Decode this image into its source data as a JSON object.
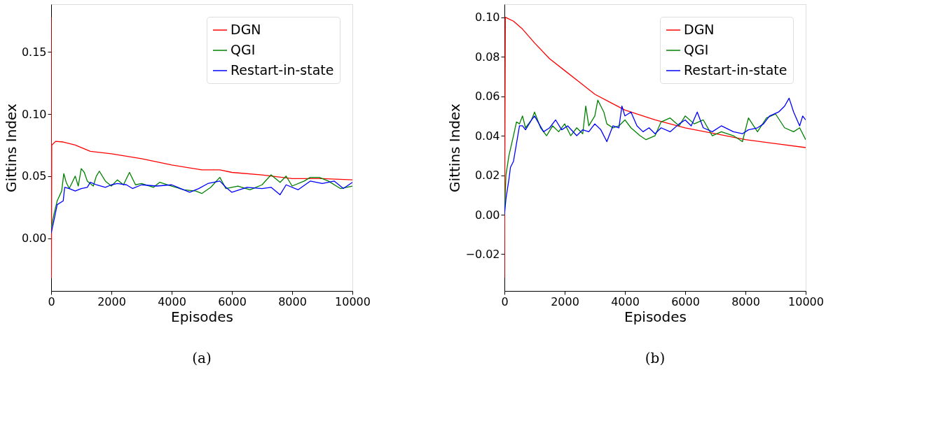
{
  "chart_data": [
    {
      "type": "line",
      "xlabel": "Episodes",
      "ylabel": "Gittins Index",
      "annotations": [
        "(a)"
      ],
      "xlim": [
        0,
        10000
      ],
      "ylim": [
        -0.0425,
        0.1885
      ],
      "xticks": [
        0,
        2000,
        4000,
        6000,
        8000,
        10000
      ],
      "yticks": [
        {
          "value": 0,
          "label": "0.00"
        },
        0.05,
        {
          "value": 0.1,
          "label": "0.10"
        },
        0.15
      ],
      "legend": "top right",
      "grid": false,
      "line_style": "solid",
      "series": [
        {
          "name": "DGN",
          "color": "#ff0000",
          "x": [
            0,
            10,
            20,
            150,
            400,
            800,
            1300,
            2000,
            3000,
            4000,
            5000,
            5600,
            6000,
            7000,
            8000,
            9000,
            10000
          ],
          "values": [
            0.178,
            -0.032,
            0.075,
            0.078,
            0.0775,
            0.075,
            0.07,
            0.068,
            0.064,
            0.059,
            0.055,
            0.055,
            0.053,
            0.051,
            0.048,
            0.048,
            0.047
          ]
        },
        {
          "name": "QGI",
          "color": "#008000",
          "x": [
            0,
            100,
            200,
            350,
            420,
            500,
            600,
            700,
            800,
            900,
            1000,
            1100,
            1200,
            1400,
            1500,
            1600,
            1800,
            2000,
            2200,
            2400,
            2600,
            2800,
            3000,
            3400,
            3600,
            4000,
            4400,
            4800,
            5000,
            5300,
            5600,
            5800,
            6200,
            6600,
            7000,
            7300,
            7600,
            7800,
            8000,
            8400,
            8600,
            8900,
            9200,
            9600,
            10000
          ],
          "values": [
            0.008,
            0.02,
            0.03,
            0.038,
            0.052,
            0.045,
            0.04,
            0.045,
            0.05,
            0.042,
            0.056,
            0.053,
            0.046,
            0.042,
            0.05,
            0.054,
            0.046,
            0.042,
            0.047,
            0.043,
            0.053,
            0.043,
            0.044,
            0.041,
            0.045,
            0.042,
            0.039,
            0.038,
            0.036,
            0.041,
            0.049,
            0.04,
            0.042,
            0.039,
            0.043,
            0.051,
            0.045,
            0.05,
            0.042,
            0.046,
            0.049,
            0.049,
            0.046,
            0.04,
            0.042
          ]
        },
        {
          "name": "Restart-in-state",
          "color": "#0000ff",
          "x": [
            0,
            100,
            200,
            400,
            450,
            600,
            800,
            1000,
            1200,
            1300,
            1500,
            1800,
            2000,
            2200,
            2500,
            2700,
            3000,
            3500,
            4000,
            4300,
            4600,
            4900,
            5200,
            5600,
            5800,
            6000,
            6500,
            7000,
            7300,
            7600,
            7800,
            8200,
            8600,
            9000,
            9400,
            9700,
            10000
          ],
          "values": [
            0.004,
            0.015,
            0.027,
            0.03,
            0.041,
            0.04,
            0.038,
            0.04,
            0.041,
            0.045,
            0.043,
            0.041,
            0.043,
            0.044,
            0.043,
            0.04,
            0.043,
            0.042,
            0.043,
            0.04,
            0.037,
            0.04,
            0.044,
            0.046,
            0.041,
            0.037,
            0.041,
            0.04,
            0.041,
            0.035,
            0.043,
            0.039,
            0.046,
            0.044,
            0.046,
            0.04,
            0.045
          ]
        }
      ]
    },
    {
      "type": "line",
      "xlabel": "Episodes",
      "ylabel": "Gittins Index",
      "annotations": [
        "(b)"
      ],
      "xlim": [
        0,
        10000
      ],
      "ylim": [
        -0.0386,
        0.1066
      ],
      "xticks": [
        0,
        2000,
        4000,
        6000,
        8000,
        10000
      ],
      "yticks": [
        {
          "value": -0.02,
          "label": "−0.02"
        },
        {
          "value": 0,
          "label": "0.00"
        },
        0.02,
        0.04,
        0.06,
        0.08,
        {
          "value": 0.1,
          "label": "0.10"
        }
      ],
      "legend": "top right",
      "grid": false,
      "line_style": "solid",
      "series": [
        {
          "name": "DGN",
          "color": "#ff0000",
          "x": [
            0,
            30,
            100,
            300,
            600,
            1000,
            1500,
            2000,
            2500,
            3000,
            3500,
            4000,
            5000,
            6000,
            7000,
            8000,
            9000,
            10000
          ],
          "values": [
            -0.032,
            0.1,
            0.0995,
            0.098,
            0.094,
            0.087,
            0.079,
            0.073,
            0.067,
            0.061,
            0.057,
            0.053,
            0.048,
            0.044,
            0.041,
            0.038,
            0.036,
            0.034
          ]
        },
        {
          "name": "QGI",
          "color": "#008000",
          "x": [
            0,
            50,
            150,
            300,
            400,
            500,
            600,
            700,
            900,
            1000,
            1200,
            1400,
            1600,
            1800,
            2000,
            2200,
            2400,
            2600,
            2700,
            2800,
            3000,
            3100,
            3300,
            3400,
            3600,
            3800,
            4000,
            4200,
            4500,
            4700,
            5000,
            5200,
            5500,
            5800,
            6000,
            6300,
            6600,
            6900,
            7200,
            7600,
            7900,
            8100,
            8400,
            8700,
            9000,
            9300,
            9600,
            9800,
            10000
          ],
          "values": [
            0.0,
            0.02,
            0.03,
            0.04,
            0.047,
            0.046,
            0.05,
            0.044,
            0.048,
            0.052,
            0.044,
            0.04,
            0.045,
            0.042,
            0.046,
            0.04,
            0.044,
            0.041,
            0.055,
            0.045,
            0.05,
            0.058,
            0.052,
            0.046,
            0.044,
            0.045,
            0.048,
            0.044,
            0.04,
            0.038,
            0.04,
            0.047,
            0.049,
            0.045,
            0.05,
            0.046,
            0.048,
            0.04,
            0.042,
            0.04,
            0.037,
            0.049,
            0.042,
            0.049,
            0.051,
            0.044,
            0.042,
            0.044,
            0.038
          ]
        },
        {
          "name": "Restart-in-state",
          "color": "#0000ff",
          "x": [
            0,
            50,
            150,
            200,
            300,
            500,
            600,
            700,
            900,
            1000,
            1300,
            1500,
            1700,
            1900,
            2100,
            2400,
            2600,
            2800,
            3000,
            3200,
            3400,
            3600,
            3800,
            3900,
            4000,
            4200,
            4400,
            4600,
            4800,
            5000,
            5200,
            5500,
            5800,
            6000,
            6200,
            6400,
            6600,
            6900,
            7200,
            7600,
            7900,
            8100,
            8400,
            8600,
            8800,
            9100,
            9300,
            9450,
            9600,
            9800,
            9900,
            10000
          ],
          "values": [
            0.0,
            0.008,
            0.018,
            0.024,
            0.027,
            0.045,
            0.045,
            0.043,
            0.048,
            0.05,
            0.042,
            0.044,
            0.048,
            0.043,
            0.045,
            0.04,
            0.043,
            0.042,
            0.046,
            0.043,
            0.037,
            0.045,
            0.044,
            0.055,
            0.05,
            0.052,
            0.045,
            0.042,
            0.044,
            0.041,
            0.044,
            0.042,
            0.046,
            0.048,
            0.045,
            0.052,
            0.044,
            0.042,
            0.045,
            0.042,
            0.041,
            0.043,
            0.044,
            0.046,
            0.05,
            0.052,
            0.055,
            0.059,
            0.052,
            0.045,
            0.05,
            0.048
          ]
        }
      ]
    }
  ]
}
